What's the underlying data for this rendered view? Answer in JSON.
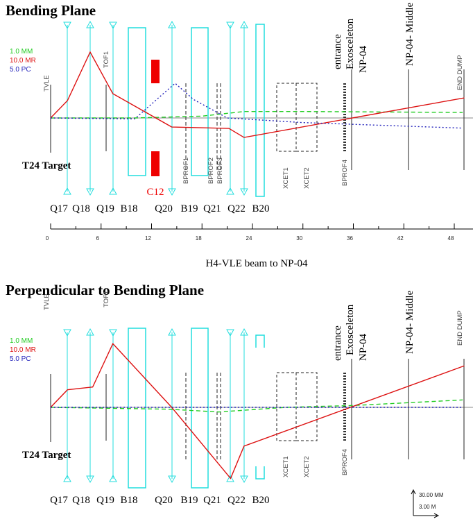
{
  "panels": [
    {
      "title": "Bending Plane",
      "legend": [
        "1.0 MM",
        "10.0 MR",
        "5.0 PC"
      ],
      "detectors": [
        "TVLE",
        "TOF1",
        "BPROF1",
        "BPROF2",
        "BPROF3",
        "XCET1",
        "XCET2",
        "BPROF4",
        "END DUMP"
      ],
      "locations": [
        "entrance",
        "Exosceleton",
        "NP-04",
        "NP-04- Middle"
      ],
      "target_label": "T24 Target",
      "magnet_label": "C12",
      "element_labels": [
        "Q17",
        "Q18",
        "Q19",
        "B18",
        "Q20",
        "B19",
        "Q21",
        "Q22",
        "B20"
      ],
      "traces": [
        {
          "color": "#22cc22",
          "dash": "6,4",
          "x": [
            0,
            10,
            18,
            23,
            30,
            49
          ],
          "y": [
            0,
            0,
            2,
            7,
            7,
            6
          ]
        },
        {
          "color": "#dd1111",
          "dash": "none",
          "x": [
            0,
            2,
            4.7,
            7.4,
            14.4,
            21.2,
            23,
            49.2
          ],
          "y": [
            0,
            18.8,
            71.4,
            26.3,
            -9.8,
            -11.3,
            -21.1,
            21.8
          ]
        },
        {
          "color": "#2222bb",
          "dash": "2,3",
          "x": [
            0,
            10,
            14.8,
            17,
            21,
            30,
            49
          ],
          "y": [
            0,
            -1,
            37.6,
            20,
            0,
            -5,
            -11
          ]
        }
      ]
    },
    {
      "title": "Perpendicular to Bending Plane",
      "legend": [
        "1.0 MM",
        "10.0 MR",
        "5.0 PC"
      ],
      "detectors": [
        "TVLE",
        "TOF1",
        "XCET1",
        "XCET2",
        "BPROF4",
        "END DUMP"
      ],
      "locations": [
        "entrance",
        "Exosceleton",
        "NP-04",
        "NP-04- Middle"
      ],
      "target_label": "T24 Target",
      "element_labels": [
        "Q17",
        "Q18",
        "Q19",
        "B18",
        "Q20",
        "B19",
        "Q21",
        "Q22",
        "B20"
      ],
      "traces": [
        {
          "color": "#22cc22",
          "dash": "6,4",
          "x": [
            0,
            14,
            20,
            28,
            36,
            49
          ],
          "y": [
            0,
            -2,
            -5,
            0,
            2,
            8
          ]
        },
        {
          "color": "#dd1111",
          "dash": "none",
          "x": [
            0,
            2,
            5,
            7.4,
            14.4,
            21.4,
            23,
            49.2
          ],
          "y": [
            0,
            19,
            22,
            69,
            0,
            -77,
            -42,
            45
          ]
        },
        {
          "color": "#2222bb",
          "dash": "2,3",
          "x": [
            0,
            49
          ],
          "y": [
            0,
            0
          ]
        }
      ]
    }
  ],
  "axis": {
    "ticks": [
      0,
      6,
      12,
      18,
      24,
      30,
      36,
      42,
      48
    ]
  },
  "caption": "H4-VLE beam to NP-04",
  "scale_bar": {
    "vertical": "30.00 MM",
    "horizontal": "3.00 M"
  }
}
